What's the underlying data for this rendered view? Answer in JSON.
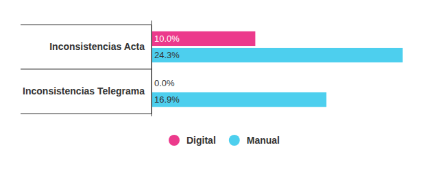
{
  "chart_data": {
    "type": "bar",
    "orientation": "horizontal",
    "categories": [
      "Inconsistencias Acta",
      "Inconsistencias Telegrama"
    ],
    "series": [
      {
        "name": "Digital",
        "color": "#ec3a8c",
        "values": [
          10.0,
          0.0
        ],
        "value_labels": [
          "10.0%",
          "0.0%"
        ]
      },
      {
        "name": "Manual",
        "color": "#4dcfee",
        "values": [
          24.3,
          16.9
        ],
        "value_labels": [
          "24.3%",
          "16.9%"
        ]
      }
    ],
    "xlim": [
      0,
      26
    ],
    "data_labels": true,
    "tick_labels": "y",
    "legend": "bottom"
  }
}
